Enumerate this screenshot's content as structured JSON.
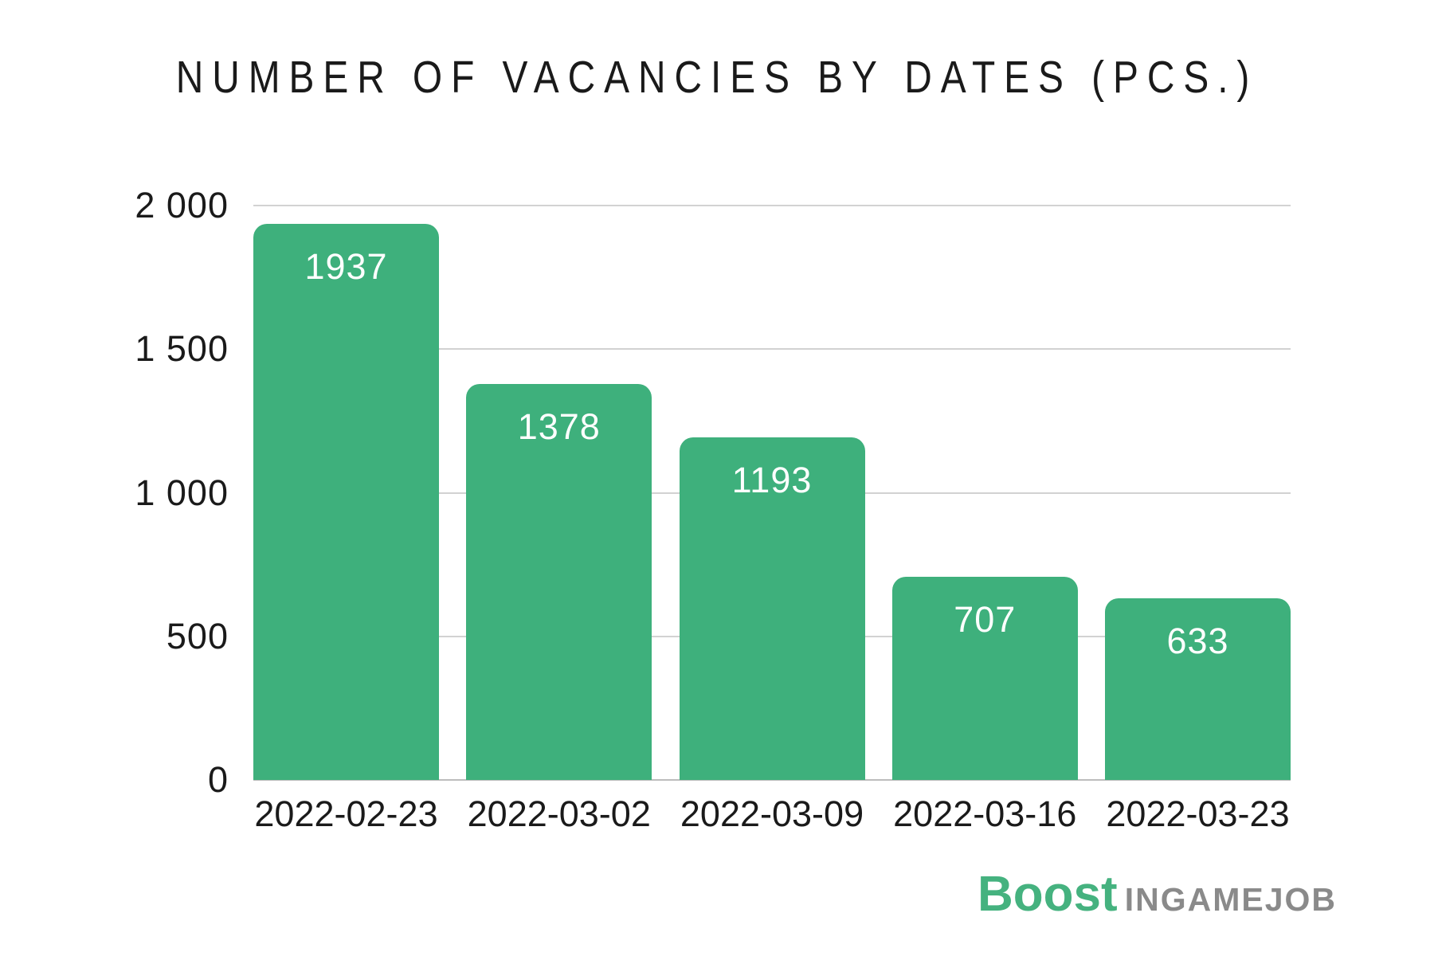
{
  "chart_data": {
    "type": "bar",
    "title": "NUMBER OF VACANCIES BY DATES (PCS.)",
    "categories": [
      "2022-02-23",
      "2022-03-02",
      "2022-03-09",
      "2022-03-16",
      "2022-03-23"
    ],
    "values": [
      1937,
      1378,
      1193,
      707,
      633
    ],
    "value_labels": [
      "1937",
      "1378",
      "1193",
      "707",
      "633"
    ],
    "xlabel": "",
    "ylabel": "",
    "ylim": [
      0,
      2000
    ],
    "yticks": [
      0,
      500,
      1000,
      1500,
      2000
    ],
    "ytick_labels": [
      "0",
      "500",
      "1 000",
      "1 500",
      "2 000"
    ],
    "grid": true,
    "legend": "none",
    "colors": {
      "bar": "#3EB07C",
      "grid": "#D2D2D2",
      "baseline": "#BDBDBD",
      "text": "#1A1A1A",
      "value_label": "#FFFFFF"
    }
  },
  "branding": {
    "boost_label": "Boost",
    "ingamejob_label": "INGAMEJOB",
    "boost_color": "#45B27F",
    "ingamejob_color": "#8A8A8A"
  }
}
